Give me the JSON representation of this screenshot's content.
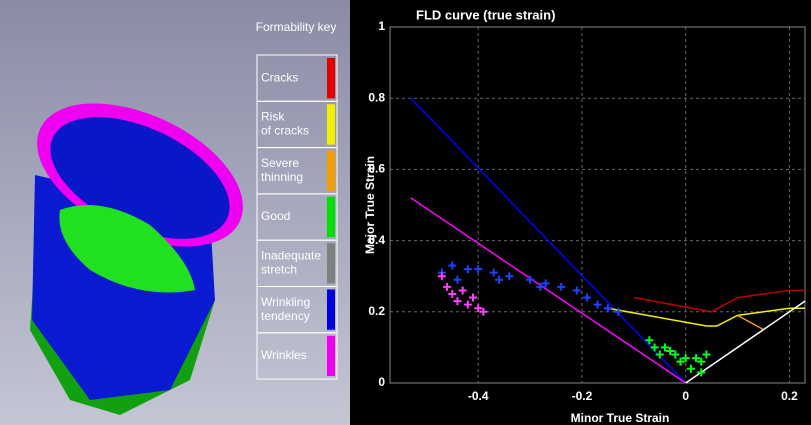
{
  "formability_key": {
    "title": "Formability key",
    "items": [
      {
        "lines": [
          "Cracks"
        ],
        "color": "#e00000"
      },
      {
        "lines": [
          "Risk",
          "of cracks"
        ],
        "color": "#f0f000"
      },
      {
        "lines": [
          "Severe",
          "thinning"
        ],
        "color": "#f0a000"
      },
      {
        "lines": [
          "Good"
        ],
        "color": "#00e000"
      },
      {
        "lines": [
          "Inadequate",
          "stretch"
        ],
        "color": "#808080"
      },
      {
        "lines": [
          "Wrinkling",
          "tendency"
        ],
        "color": "#0000e0"
      },
      {
        "lines": [
          "Wrinkles"
        ],
        "color": "#f000f0"
      }
    ]
  },
  "chart_data": {
    "type": "line",
    "title": "FLD curve (true strain)",
    "xlabel": "Minor True Strain",
    "ylabel": "Major True Strain",
    "xlim": [
      -0.57,
      0.23
    ],
    "ylim": [
      0,
      1
    ],
    "xticks": [
      -0.4,
      -0.2,
      0,
      0.2
    ],
    "yticks": [
      0,
      0.2,
      0.4,
      0.6,
      0.8,
      1
    ],
    "grid": true,
    "series": [
      {
        "kind": "line",
        "color": "#0000ff",
        "x": [
          -0.53,
          0
        ],
        "values": [
          0.8,
          0
        ]
      },
      {
        "kind": "line",
        "color": "#ff00ff",
        "x": [
          -0.53,
          0
        ],
        "values": [
          0.52,
          0
        ]
      },
      {
        "kind": "line",
        "color": "#c00000",
        "x": [
          -0.1,
          0.05,
          0.1,
          0.2,
          0.23
        ],
        "values": [
          0.24,
          0.2,
          0.24,
          0.26,
          0.26
        ]
      },
      {
        "kind": "line",
        "color": "#f0f000",
        "x": [
          -0.15,
          0.04,
          0.06,
          0.1,
          0.2,
          0.23
        ],
        "values": [
          0.21,
          0.16,
          0.16,
          0.19,
          0.21,
          0.21
        ]
      },
      {
        "kind": "line",
        "color": "#f0a000",
        "x": [
          0.1,
          0.15
        ],
        "values": [
          0.19,
          0.15
        ]
      },
      {
        "kind": "line",
        "color": "#ffffff",
        "x": [
          0,
          0.23
        ],
        "values": [
          0,
          0.23
        ]
      },
      {
        "kind": "scatter",
        "color": "#2040ff",
        "x": [
          -0.47,
          -0.45,
          -0.44,
          -0.42,
          -0.4,
          -0.37,
          -0.36,
          -0.34,
          -0.3,
          -0.28,
          -0.27,
          -0.24,
          -0.21,
          -0.19,
          -0.17,
          -0.15,
          -0.13
        ],
        "values": [
          0.31,
          0.33,
          0.29,
          0.32,
          0.32,
          0.31,
          0.29,
          0.3,
          0.29,
          0.27,
          0.28,
          0.27,
          0.26,
          0.24,
          0.22,
          0.21,
          0.2
        ]
      },
      {
        "kind": "scatter",
        "color": "#ff40ff",
        "x": [
          -0.47,
          -0.46,
          -0.45,
          -0.44,
          -0.43,
          -0.42,
          -0.41,
          -0.4,
          -0.39
        ],
        "values": [
          0.3,
          0.27,
          0.25,
          0.23,
          0.26,
          0.22,
          0.24,
          0.21,
          0.2
        ]
      },
      {
        "kind": "scatter",
        "color": "#00ff20",
        "x": [
          -0.07,
          -0.06,
          -0.05,
          -0.04,
          -0.03,
          -0.02,
          -0.01,
          0,
          0.01,
          0.02,
          0.03,
          0.03,
          0.04
        ],
        "values": [
          0.12,
          0.1,
          0.08,
          0.1,
          0.09,
          0.08,
          0.06,
          0.07,
          0.04,
          0.07,
          0.06,
          0.03,
          0.08
        ]
      }
    ]
  }
}
